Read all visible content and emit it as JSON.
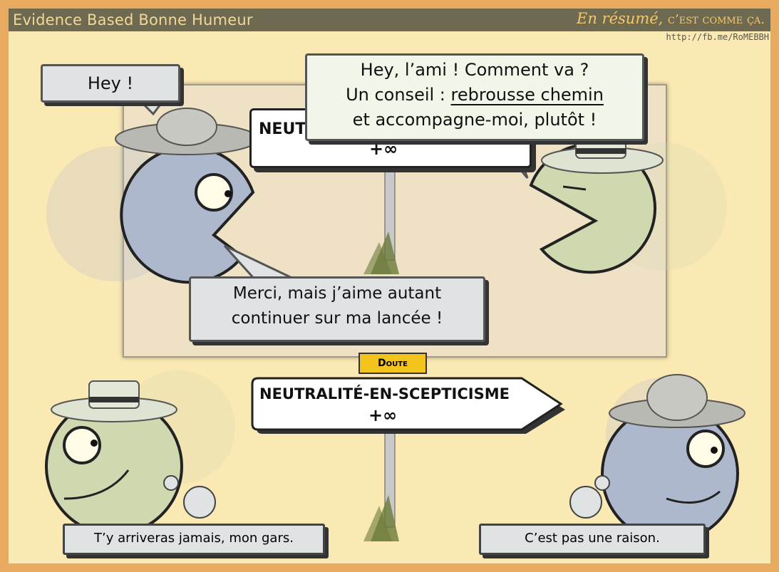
{
  "header": {
    "brand": "Evidence Based Bonne Humeur",
    "tagline_italic": "En résumé,",
    "tagline_caps": "c’est comme ça.",
    "url": "http://fb.me/RoMEBBH"
  },
  "top_scene": {
    "bubble_left": "Hey !",
    "bubble_right_line1": "Hey, l’ami ! Comment va ?",
    "bubble_right_line2_a": "Un conseil : ",
    "bubble_right_line2_b": "rebrousse chemin",
    "bubble_right_line3": "et accompagne-moi, plutôt !",
    "bubble_reply_line1": "Merci, mais j’aime autant",
    "bubble_reply_line2": "continuer sur ma lancée !",
    "sign_title": "NEUT",
    "sign_value": "+∞"
  },
  "bottom_scene": {
    "doute_label": "Doute",
    "sign_title": "NEUTRALITÉ-EN-SCEPTICISME",
    "sign_value": "+∞",
    "caption_left": "T’y arriveras jamais, mon gars.",
    "caption_right": "C’est pas une raison."
  },
  "colors": {
    "frame": "#e8aa5e",
    "header": "#6e6a52",
    "panel": "#fbe9b4",
    "blue_character": "#aeb8cc",
    "green_character": "#cfd8ae"
  }
}
